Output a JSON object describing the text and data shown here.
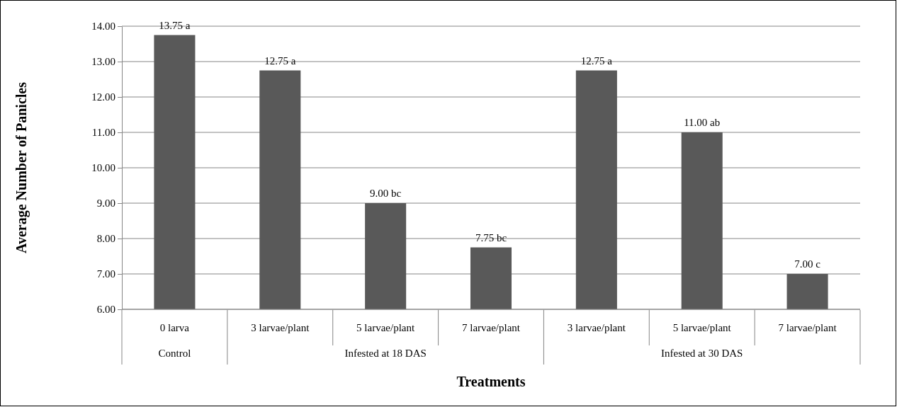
{
  "chart_data": {
    "type": "bar",
    "xlabel": "Treatments",
    "ylabel": "Average Number of Panicles",
    "categories": [
      "0 larva",
      "3 larvae/plant",
      "5 larvae/plant",
      "7 larvae/plant",
      "3 larvae/plant",
      "5 larvae/plant",
      "7 larvae/plant"
    ],
    "values": [
      13.75,
      12.75,
      9.0,
      7.75,
      12.75,
      11.0,
      7.0
    ],
    "value_labels": [
      "13.75 a",
      "12.75 a",
      "9.00 bc",
      "7.75 bc",
      "12.75 a",
      "11.00 ab",
      "7.00 c"
    ],
    "color": "#595959",
    "ylim": [
      6,
      14
    ],
    "yticks": [
      {
        "value": 6,
        "label": "6.00"
      },
      {
        "value": 7,
        "label": "7.00"
      },
      {
        "value": 8,
        "label": "8.00"
      },
      {
        "value": 9,
        "label": "9.00"
      },
      {
        "value": 10,
        "label": "10.00"
      },
      {
        "value": 11,
        "label": "11.00"
      },
      {
        "value": 12,
        "label": "12.00"
      },
      {
        "value": 13,
        "label": "13.00"
      },
      {
        "value": 14,
        "label": "14.00"
      }
    ],
    "grid": "y",
    "annotations": [
      "Control",
      "Infested at 18 DAS",
      "Infested at 30 DAS"
    ]
  }
}
